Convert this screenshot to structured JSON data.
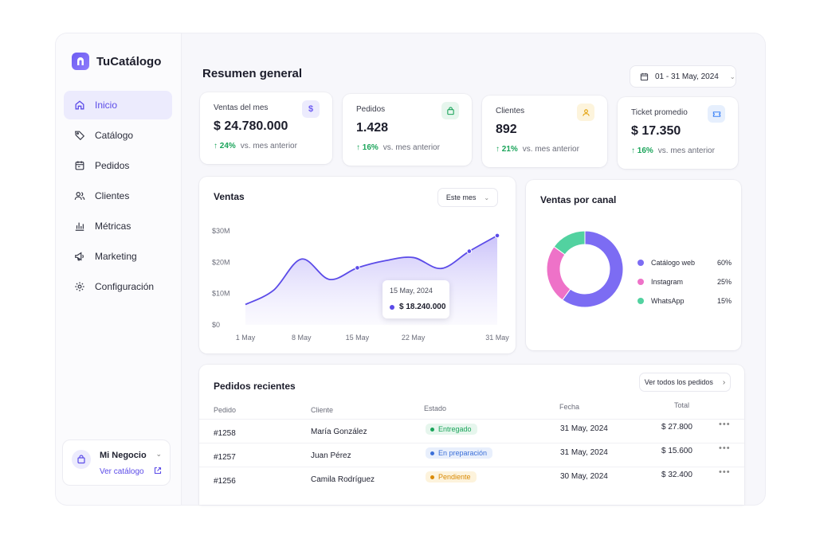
{
  "app": {
    "name": "TuCatálogo"
  },
  "sidebar": {
    "items": [
      {
        "label": "Inicio",
        "icon": "home-icon",
        "active": true
      },
      {
        "label": "Catálogo",
        "icon": "tag-icon"
      },
      {
        "label": "Pedidos",
        "icon": "calendar-icon"
      },
      {
        "label": "Clientes",
        "icon": "users-icon"
      },
      {
        "label": "Métricas",
        "icon": "bar-chart-icon"
      },
      {
        "label": "Marketing",
        "icon": "megaphone-icon"
      },
      {
        "label": "Configuración",
        "icon": "gear-icon"
      }
    ],
    "business": {
      "name": "Mi Negocio",
      "link": "Ver catálogo"
    }
  },
  "header": {
    "title": "Resumen general",
    "date_range": "01 - 31 May, 2024"
  },
  "kpis": [
    {
      "label": "Ventas del mes",
      "value": "$ 24.780.000",
      "delta": "24%",
      "vs": "vs. mes anterior",
      "icon": "dollar-icon",
      "icon_glyph": "$",
      "color": "#6d5cf2",
      "bg": "#ecebfd"
    },
    {
      "label": "Pedidos",
      "value": "1.428",
      "delta": "16%",
      "vs": "vs. mes anterior",
      "icon": "bag-icon",
      "color": "#1aa45a",
      "bg": "#e6f6ed"
    },
    {
      "label": "Clientes",
      "value": "892",
      "delta": "21%",
      "vs": "vs. mes anterior",
      "icon": "user-icon",
      "color": "#e3a008",
      "bg": "#fdf4dc"
    },
    {
      "label": "Ticket promedio",
      "value": "$ 17.350",
      "delta": "16%",
      "vs": "vs. mes anterior",
      "icon": "ticket-icon",
      "color": "#3b82f6",
      "bg": "#e6effd"
    }
  ],
  "sales": {
    "title": "Ventas",
    "period": "Este mes",
    "tooltip": {
      "date": "15 May, 2024",
      "value": "$ 18.240.000"
    },
    "chart_data": {
      "type": "area",
      "x": [
        "1 May",
        "4 May",
        "8 May",
        "11 May",
        "15 May",
        "18 May",
        "22 May",
        "25 May",
        "28 May",
        "31 May"
      ],
      "xticks": [
        "1 May",
        "8 May",
        "15 May",
        "22 May",
        "31 May"
      ],
      "values": [
        6.5,
        11,
        21,
        14.5,
        18.2,
        20.5,
        21.5,
        18,
        23.5,
        28.5
      ],
      "yticks": [
        "$0",
        "$10M",
        "$20M",
        "$30M"
      ],
      "ylim": [
        0,
        30
      ]
    }
  },
  "channels": {
    "title": "Ventas por canal",
    "chart_data": {
      "type": "pie",
      "labels": [
        "Catálogo web",
        "Instagram",
        "WhatsApp"
      ],
      "values": [
        60,
        25,
        15
      ],
      "display": [
        "60%",
        "25%",
        "15%"
      ],
      "colors": [
        "#7c6cf3",
        "#ee72c8",
        "#52d2a0"
      ]
    }
  },
  "orders": {
    "title": "Pedidos recientes",
    "view_all": "Ver todos los pedidos",
    "columns": [
      "Pedido",
      "Cliente",
      "Estado",
      "Fecha",
      "Total"
    ],
    "rows": [
      {
        "id": "#1258",
        "client": "María González",
        "status": "Entregado",
        "status_color": "#1aa45a",
        "status_bg": "#e6f6ed",
        "date": "31 May, 2024",
        "total": "$ 27.800"
      },
      {
        "id": "#1257",
        "client": "Juan Pérez",
        "status": "En preparación",
        "status_color": "#3b6fd8",
        "status_bg": "#e8effc",
        "date": "31 May, 2024",
        "total": "$ 15.600"
      },
      {
        "id": "#1256",
        "client": "Camila Rodríguez",
        "status": "Pendiente",
        "status_color": "#d98a06",
        "status_bg": "#fdf3dc",
        "date": "30 May, 2024",
        "total": "$ 32.400"
      }
    ]
  }
}
